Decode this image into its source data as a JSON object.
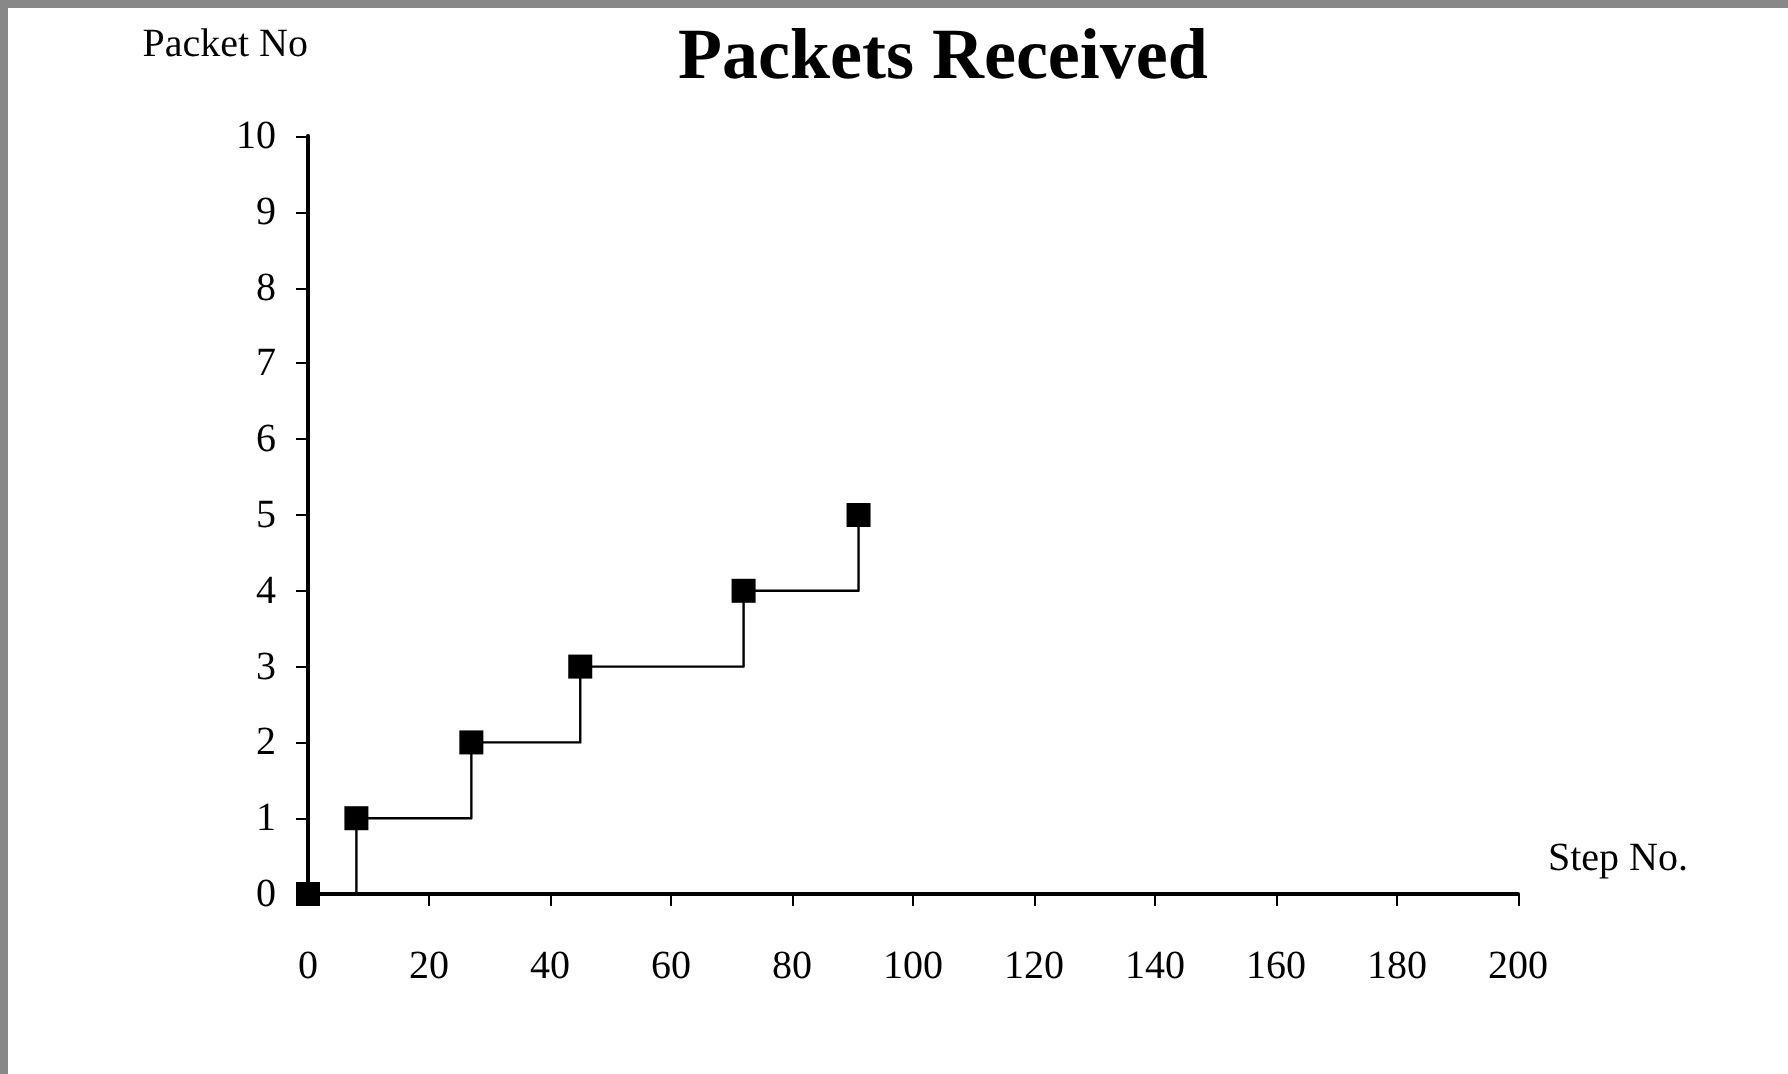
{
  "chart_data": {
    "type": "step",
    "title": "Packets Received",
    "xlabel": "Step No.",
    "ylabel": "Packet No",
    "x": [
      0,
      8,
      27,
      45,
      72,
      91
    ],
    "series": [
      {
        "color": "#000000",
        "values": [
          0,
          1,
          2,
          3,
          4,
          5
        ]
      }
    ],
    "xlim": [
      0,
      200
    ],
    "xticks": [
      {
        "value": 0,
        "label": "0"
      },
      20,
      40,
      60,
      80,
      100,
      120,
      140,
      160,
      180,
      200
    ],
    "ylim": [
      0,
      10
    ],
    "yticks": [
      {
        "value": 0,
        "label": "0"
      },
      1,
      2,
      3,
      4,
      5,
      6,
      7,
      8,
      9,
      10
    ],
    "marker": "square",
    "line_style": "solid",
    "grid": false
  }
}
